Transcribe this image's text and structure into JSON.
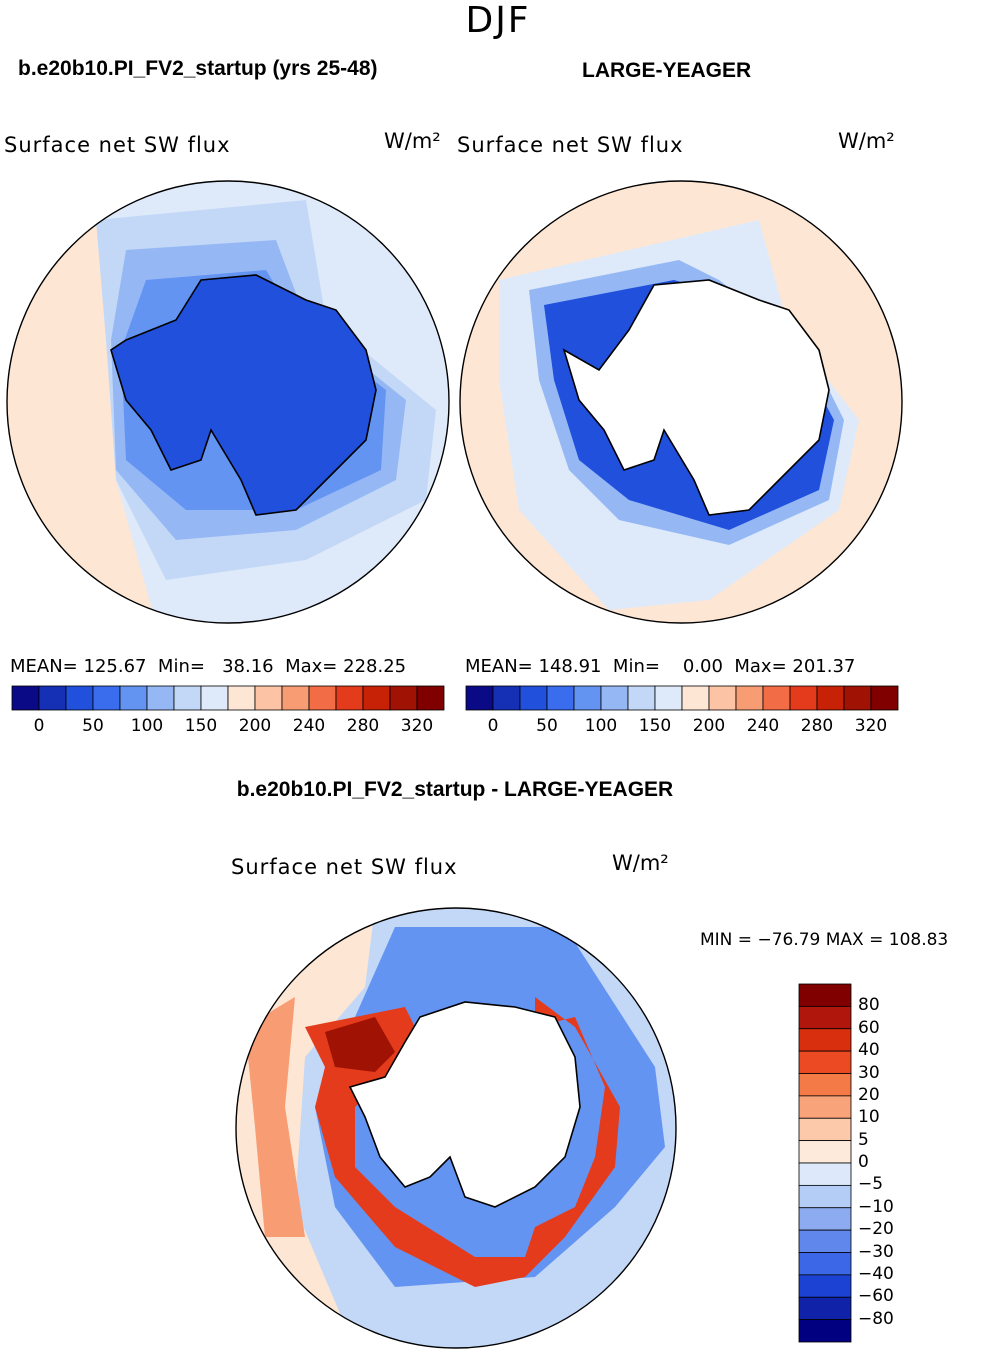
{
  "header": {
    "season": "DJF"
  },
  "panels": [
    {
      "case_title": "b.e20b10.PI_FV2_startup (yrs 25-48)",
      "variable": "Surface net SW flux",
      "units": "W/m²",
      "stats": {
        "mean": "MEAN= 125.67",
        "min": "Min=   38.16",
        "max": "Max= 228.25"
      }
    },
    {
      "case_title": "LARGE-YEAGER",
      "variable": "Surface net SW flux",
      "units": "W/m²",
      "stats": {
        "mean": "MEAN= 148.91",
        "min": "Min=    0.00",
        "max": "Max= 201.37"
      }
    }
  ],
  "colorbar_top": {
    "colors": [
      "#0a0a87",
      "#1530b4",
      "#2050dc",
      "#3a6cee",
      "#6494f2",
      "#95b8f5",
      "#c3d8f7",
      "#deeafa",
      "#fde6d4",
      "#fcc4a5",
      "#f89c74",
      "#f26c45",
      "#e43b1c",
      "#c82206",
      "#a01203",
      "#800000"
    ],
    "ticks": [
      "0",
      "50",
      "100",
      "150",
      "200",
      "240",
      "280",
      "320"
    ]
  },
  "difference": {
    "title": "b.e20b10.PI_FV2_startup - LARGE-YEAGER",
    "variable": "Surface net SW flux",
    "units": "W/m²",
    "min_max": "MIN = −76.79 MAX = 108.83",
    "colorbar": {
      "colors": [
        "#800000",
        "#b0160c",
        "#d8300f",
        "#ec4a22",
        "#f47a48",
        "#f9a37b",
        "#fcc9aa",
        "#fdeadb",
        "#dde9fa",
        "#b3cdf7",
        "#8dabf1",
        "#6088ec",
        "#3c68e8",
        "#1c42d4",
        "#0f22a8",
        "#000080"
      ],
      "ticks": [
        "80",
        "60",
        "40",
        "30",
        "20",
        "10",
        "5",
        "0",
        "−5",
        "−10",
        "−20",
        "−30",
        "−40",
        "−60",
        "−80"
      ]
    }
  },
  "map_colors": {
    "ocean_pale_blue": "#deeafa",
    "light_blue": "#c3d8f7",
    "mid_blue": "#95b8f5",
    "blue": "#6494f2",
    "deep_blue": "#2050dc",
    "pale_orange": "#fde6d4",
    "orange": "#f89c74",
    "red": "#e43b1c",
    "dark_red": "#a01203",
    "missing": "#ffffff"
  }
}
